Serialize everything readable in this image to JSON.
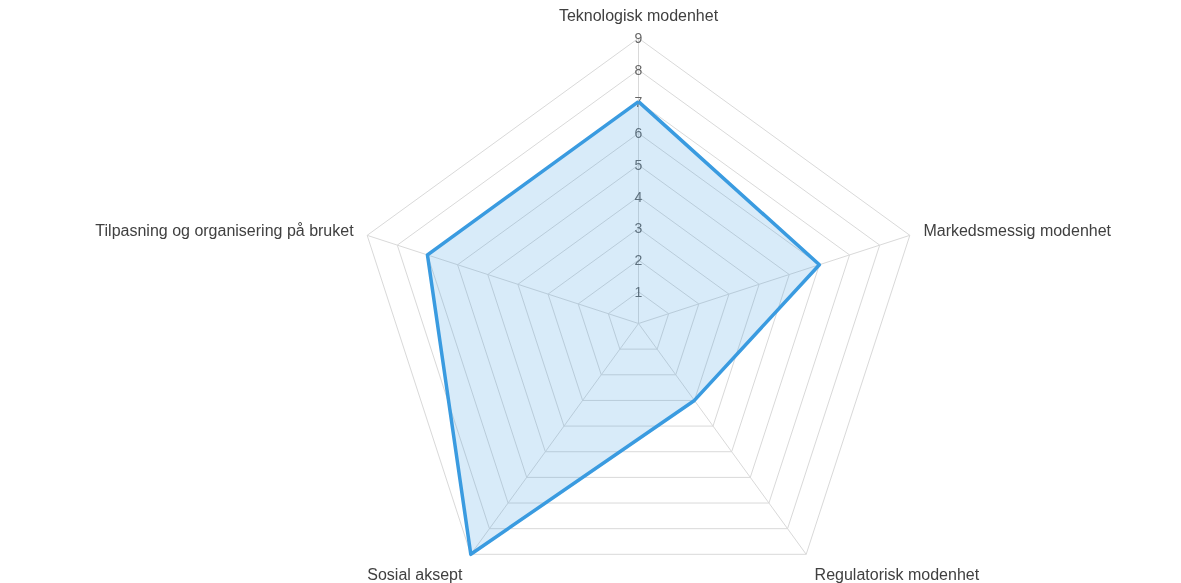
{
  "chart_data": {
    "type": "radar",
    "categories": [
      "Teknologisk modenhet",
      "Markedsmessig modenhet",
      "Regulatorisk modenhet",
      "Sosial aksept",
      "Tilpasning og organisering på bruket"
    ],
    "series": [
      {
        "color": "#3a9be0",
        "values": [
          7,
          6,
          3,
          9,
          7
        ]
      }
    ],
    "ylim": [
      0,
      9
    ],
    "yticks": [
      1,
      2,
      3,
      4,
      5,
      6,
      7,
      8,
      9
    ],
    "grid": true,
    "marker": "none",
    "line_style": "solid"
  }
}
